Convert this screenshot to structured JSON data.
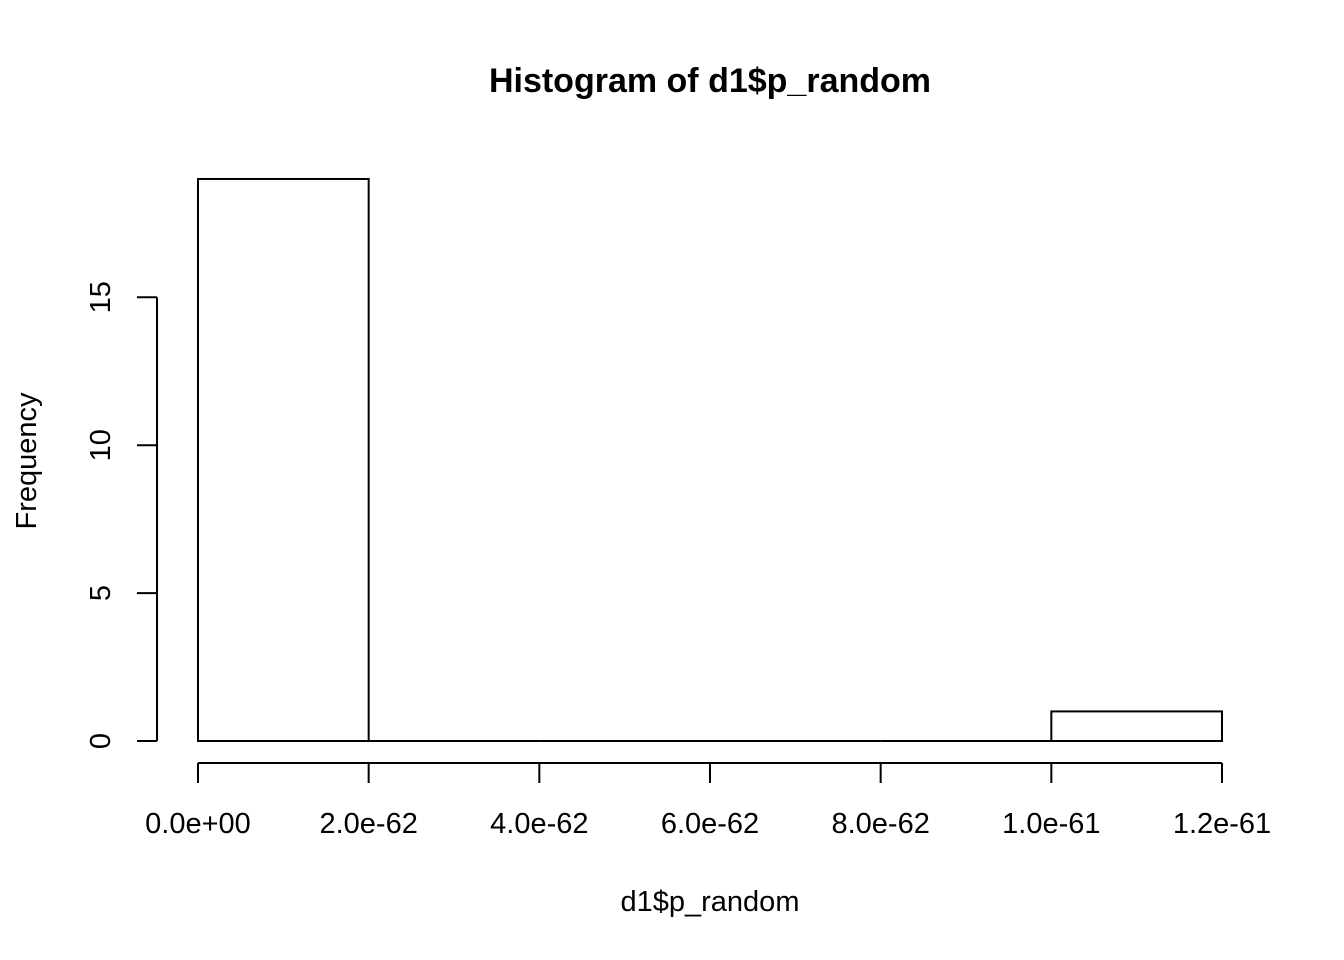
{
  "chart_data": {
    "type": "bar",
    "title": "Histogram of d1$p_random",
    "xlabel": "d1$p_random",
    "ylabel": "Frequency",
    "bins": [
      {
        "start": 0.0,
        "end": 2e-62,
        "count": 19
      },
      {
        "start": 2e-62,
        "end": 4e-62,
        "count": 0
      },
      {
        "start": 4e-62,
        "end": 6e-62,
        "count": 0
      },
      {
        "start": 6e-62,
        "end": 8e-62,
        "count": 0
      },
      {
        "start": 8e-62,
        "end": 1e-61,
        "count": 0
      },
      {
        "start": 1e-61,
        "end": 1.2e-61,
        "count": 1
      }
    ],
    "xlim": [
      0,
      1.2e-61
    ],
    "ylim": [
      0,
      19
    ],
    "x_ticks": [
      0,
      2e-62,
      4e-62,
      6e-62,
      8e-62,
      1e-61,
      1.2e-61
    ],
    "x_tick_labels": [
      "0.0e+00",
      "2.0e-62",
      "4.0e-62",
      "6.0e-62",
      "8.0e-62",
      "1.0e-61",
      "1.2e-61"
    ],
    "y_ticks": [
      0,
      5,
      10,
      15
    ],
    "y_tick_labels": [
      "0",
      "5",
      "10",
      "15"
    ],
    "grid": false,
    "colors": {
      "bar_fill": "#ffffff",
      "bar_stroke": "#000000",
      "axis": "#000000",
      "background": "#ffffff"
    }
  }
}
